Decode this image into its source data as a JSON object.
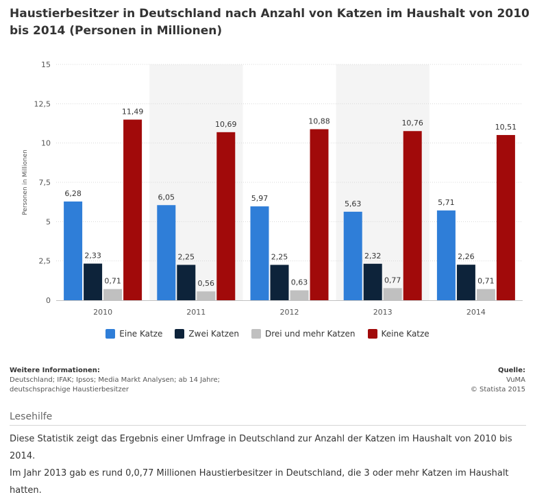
{
  "title": "Haustierbesitzer in Deutschland nach Anzahl von Katzen im Haushalt von 2010 bis 2014 (Personen in Millionen)",
  "chart_data": {
    "type": "bar",
    "categories": [
      "2010",
      "2011",
      "2012",
      "2013",
      "2014"
    ],
    "series": [
      {
        "name": "Eine Katze",
        "color": "#2f7ed8",
        "values": [
          6.28,
          6.05,
          5.97,
          5.63,
          5.71
        ],
        "labels": [
          "6,28",
          "6,05",
          "5,97",
          "5,63",
          "5,71"
        ]
      },
      {
        "name": "Zwei Katzen",
        "color": "#0d233a",
        "values": [
          2.33,
          2.25,
          2.25,
          2.32,
          2.26
        ],
        "labels": [
          "2,33",
          "2,25",
          "2,25",
          "2,32",
          "2,26"
        ]
      },
      {
        "name": "Drei und mehr Katzen",
        "color": "#c0c0c0",
        "values": [
          0.71,
          0.56,
          0.63,
          0.77,
          0.71
        ],
        "labels": [
          "0,71",
          "0,56",
          "0,63",
          "0,77",
          "0,71"
        ]
      },
      {
        "name": "Keine Katze",
        "color": "#a10a0a",
        "values": [
          11.49,
          10.69,
          10.88,
          10.76,
          10.51
        ],
        "labels": [
          "11,49",
          "10,69",
          "10,88",
          "10,76",
          "10,51"
        ]
      }
    ],
    "ylabel": "Personen in Millionen",
    "xlabel": "",
    "ylim": [
      0,
      15
    ],
    "yticks": [
      0,
      2.5,
      5,
      7.5,
      10,
      12.5,
      15
    ],
    "ytick_labels": [
      "0",
      "2,5",
      "5",
      "7,5",
      "10",
      "12,5",
      "15"
    ],
    "grid": true,
    "legend_position": "bottom-center"
  },
  "info": {
    "heading": "Weitere Informationen:",
    "line1": "Deutschland; IFAK; Ipsos; Media Markt Analysen; ab 14 Jahre;",
    "line2": "deutschsprachige Haustierbesitzer"
  },
  "source": {
    "heading": "Quelle:",
    "name": "VuMA",
    "copyright": "© Statista 2015"
  },
  "lesehilfe": "Lesehilfe",
  "description": {
    "line1": "Diese Statistik zeigt das Ergebnis einer Umfrage in Deutschland zur Anzahl der Katzen im Haushalt von 2010 bis 2014.",
    "line2": "Im Jahr 2013 gab es rund 0,0,77 Millionen Haustierbesitzer in Deutschland, die 3 oder mehr Katzen im Haushalt hatten."
  }
}
